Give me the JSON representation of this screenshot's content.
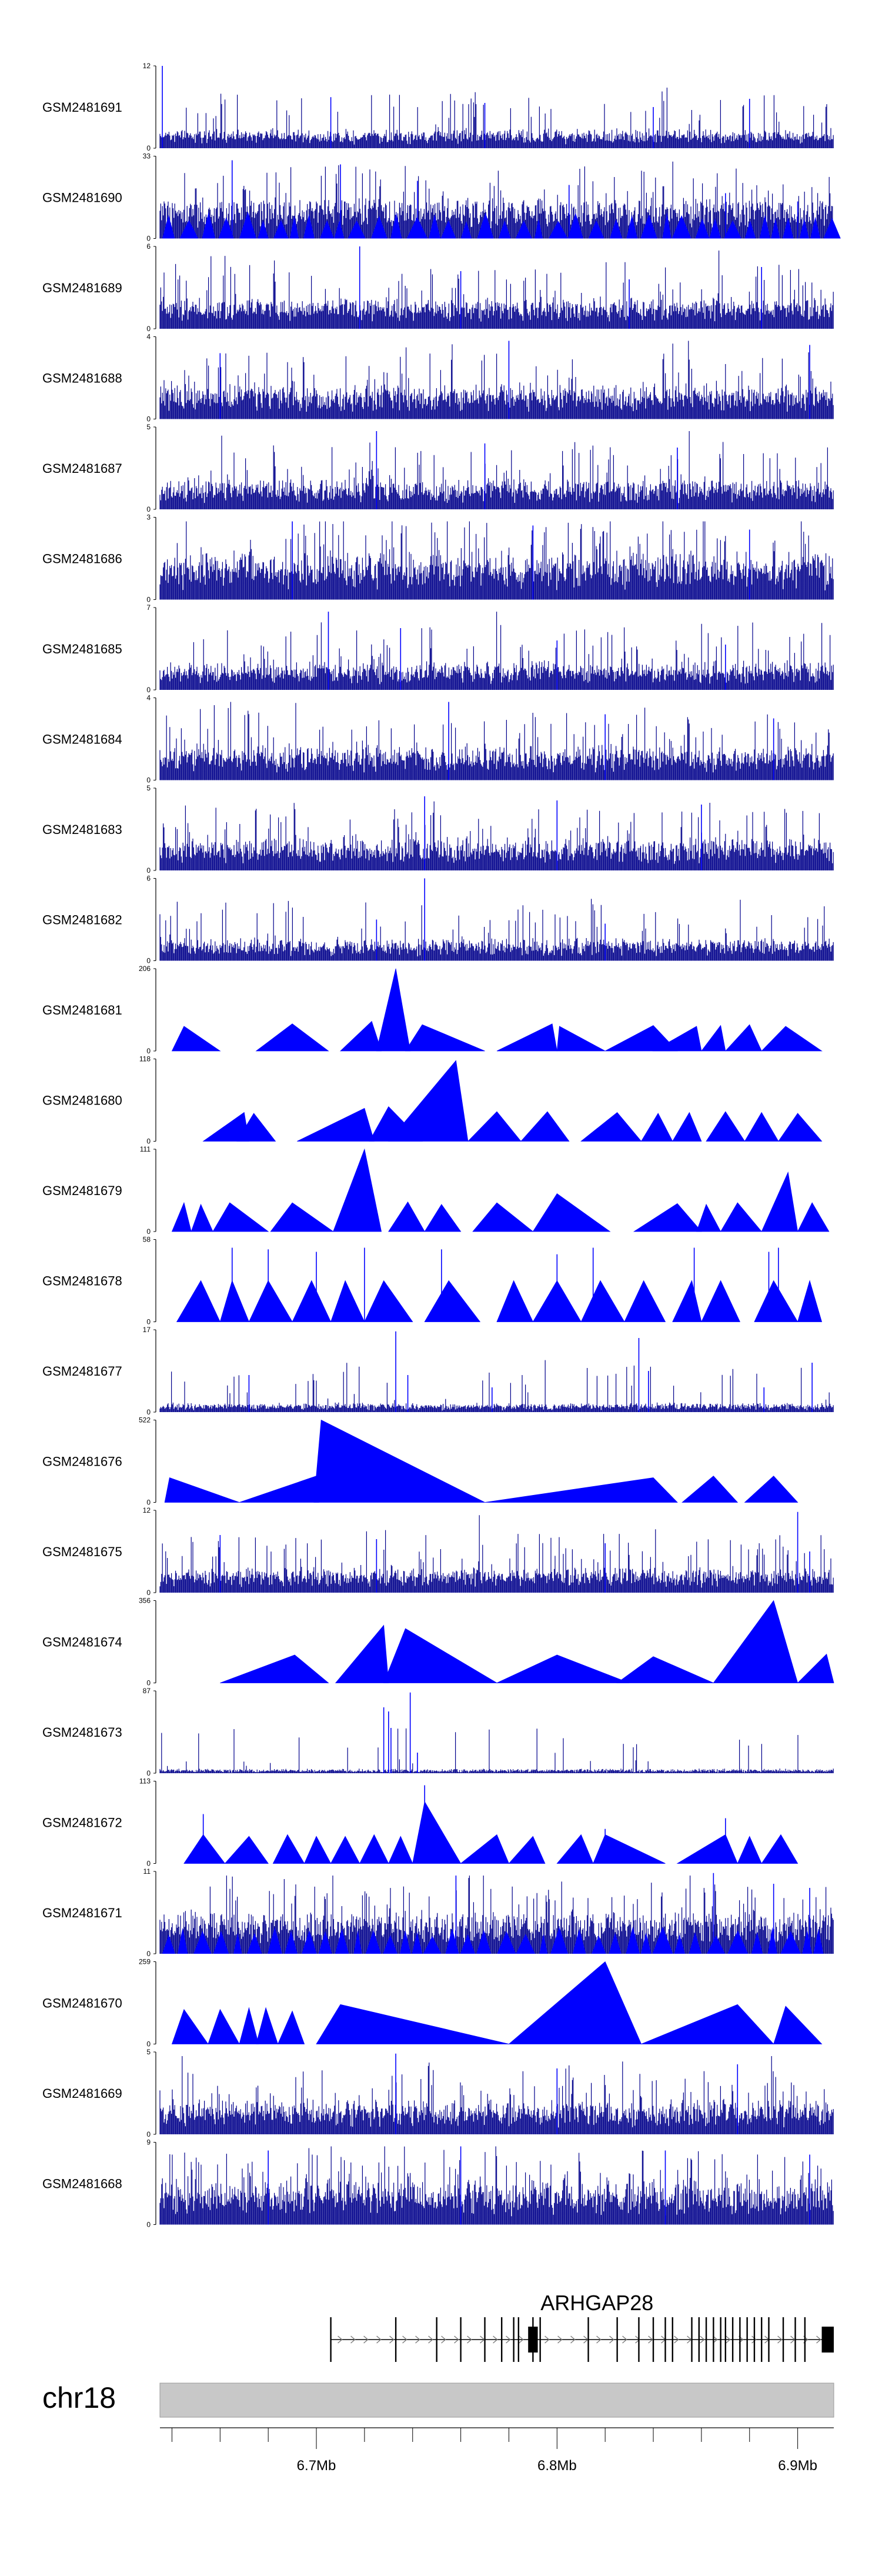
{
  "chart_data": {
    "type": "area",
    "title": "",
    "chromosome": "chr18",
    "x_range_mb": [
      6.635,
      6.915
    ],
    "x_ticks": [
      {
        "label": "6.7Mb",
        "value": 6.7
      },
      {
        "label": "6.8Mb",
        "value": 6.8
      },
      {
        "label": "6.9Mb",
        "value": 6.9
      }
    ],
    "tracks": [
      {
        "name": "GSM2481691",
        "ymax": 12,
        "ymin": 0,
        "style": "spiky",
        "base": 0.12,
        "noise": 0.08,
        "spike_rate": 0.08,
        "spikes": [
          [
            6.636,
            1.0
          ],
          [
            6.706,
            0.62
          ],
          [
            6.77,
            0.55
          ],
          [
            6.84,
            0.5
          ],
          [
            6.88,
            0.6
          ]
        ],
        "seed": 11
      },
      {
        "name": "GSM2481690",
        "ymax": 33,
        "ymin": 0,
        "style": "spiky_tri",
        "base": 0.3,
        "noise": 0.1,
        "spike_rate": 0.1,
        "spikes": [
          [
            6.665,
            0.95
          ],
          [
            6.71,
            0.9
          ],
          [
            6.742,
            0.7
          ],
          [
            6.805,
            0.65
          ],
          [
            6.87,
            0.55
          ],
          [
            6.9,
            0.45
          ]
        ],
        "seed": 12
      },
      {
        "name": "GSM2481689",
        "ymax": 6,
        "ymin": 0,
        "style": "spiky",
        "base": 0.2,
        "noise": 0.12,
        "spike_rate": 0.1,
        "spikes": [
          [
            6.718,
            1.0
          ],
          [
            6.76,
            0.7
          ],
          [
            6.83,
            0.6
          ],
          [
            6.885,
            0.75
          ]
        ],
        "seed": 13
      },
      {
        "name": "GSM2481688",
        "ymax": 4,
        "ymin": 0,
        "style": "spiky",
        "base": 0.22,
        "noise": 0.14,
        "spike_rate": 0.12,
        "spikes": [
          [
            6.66,
            0.8
          ],
          [
            6.78,
            0.95
          ],
          [
            6.905,
            0.9
          ]
        ],
        "seed": 14
      },
      {
        "name": "GSM2481687",
        "ymax": 5,
        "ymin": 0,
        "style": "spiky",
        "base": 0.2,
        "noise": 0.12,
        "spike_rate": 0.11,
        "spikes": [
          [
            6.725,
            0.95
          ],
          [
            6.77,
            0.8
          ],
          [
            6.85,
            0.75
          ]
        ],
        "seed": 15
      },
      {
        "name": "GSM2481686",
        "ymax": 3,
        "ymin": 0,
        "style": "spiky",
        "base": 0.3,
        "noise": 0.2,
        "spike_rate": 0.16,
        "spikes": [
          [
            6.69,
            0.95
          ],
          [
            6.79,
            0.9
          ],
          [
            6.88,
            0.85
          ]
        ],
        "seed": 16
      },
      {
        "name": "GSM2481685",
        "ymax": 7,
        "ymin": 0,
        "style": "spiky",
        "base": 0.18,
        "noise": 0.12,
        "spike_rate": 0.1,
        "spikes": [
          [
            6.705,
            0.95
          ],
          [
            6.735,
            0.75
          ],
          [
            6.8,
            0.6
          ],
          [
            6.87,
            0.55
          ]
        ],
        "seed": 17
      },
      {
        "name": "GSM2481684",
        "ymax": 4,
        "ymin": 0,
        "style": "spiky",
        "base": 0.22,
        "noise": 0.14,
        "spike_rate": 0.11,
        "spikes": [
          [
            6.755,
            0.95
          ],
          [
            6.82,
            0.8
          ],
          [
            6.89,
            0.75
          ]
        ],
        "seed": 18
      },
      {
        "name": "GSM2481683",
        "ymax": 5,
        "ymin": 0,
        "style": "spiky",
        "base": 0.2,
        "noise": 0.14,
        "spike_rate": 0.12,
        "spikes": [
          [
            6.745,
            0.9
          ],
          [
            6.8,
            0.85
          ],
          [
            6.86,
            0.8
          ]
        ],
        "seed": 19
      },
      {
        "name": "GSM2481682",
        "ymax": 6,
        "ymin": 0,
        "style": "spiky",
        "base": 0.14,
        "noise": 0.1,
        "spike_rate": 0.08,
        "spikes": [
          [
            6.745,
            1.0
          ],
          [
            6.725,
            0.5
          ],
          [
            6.82,
            0.45
          ]
        ],
        "seed": 20
      },
      {
        "name": "GSM2481681",
        "ymax": 206,
        "ymin": 0,
        "style": "triangles",
        "peaks": [
          [
            6.64,
            6.645,
            6.66,
            0.3
          ],
          [
            6.675,
            6.69,
            6.705,
            0.33
          ],
          [
            6.71,
            6.723,
            6.727,
            0.36
          ],
          [
            6.725,
            6.733,
            6.739,
            1.0
          ],
          [
            6.737,
            6.744,
            6.77,
            0.32
          ],
          [
            6.775,
            6.798,
            6.8,
            0.33
          ],
          [
            6.8,
            6.801,
            6.82,
            0.3
          ],
          [
            6.82,
            6.84,
            6.85,
            0.31
          ],
          [
            6.84,
            6.858,
            6.86,
            0.3
          ],
          [
            6.86,
            6.868,
            6.87,
            0.31
          ],
          [
            6.87,
            6.88,
            6.885,
            0.32
          ],
          [
            6.885,
            6.895,
            6.91,
            0.3
          ]
        ]
      },
      {
        "name": "GSM2481680",
        "ymax": 118,
        "ymin": 0,
        "style": "triangles",
        "peaks": [
          [
            6.653,
            6.67,
            6.672,
            0.35
          ],
          [
            6.667,
            6.674,
            6.683,
            0.34
          ],
          [
            6.692,
            6.72,
            6.724,
            0.4
          ],
          [
            6.722,
            6.73,
            6.744,
            0.42
          ],
          [
            6.73,
            6.758,
            6.763,
            0.98
          ],
          [
            6.763,
            6.775,
            6.785,
            0.36
          ],
          [
            6.785,
            6.796,
            6.805,
            0.36
          ],
          [
            6.81,
            6.825,
            6.835,
            0.35
          ],
          [
            6.835,
            6.842,
            6.848,
            0.34
          ],
          [
            6.848,
            6.855,
            6.86,
            0.35
          ],
          [
            6.862,
            6.87,
            6.878,
            0.36
          ],
          [
            6.878,
            6.885,
            6.892,
            0.35
          ],
          [
            6.892,
            6.9,
            6.91,
            0.34
          ]
        ]
      },
      {
        "name": "GSM2481679",
        "ymax": 111,
        "ymin": 0,
        "style": "triangles",
        "peaks": [
          [
            6.64,
            6.645,
            6.648,
            0.35
          ],
          [
            6.648,
            6.652,
            6.657,
            0.33
          ],
          [
            6.657,
            6.664,
            6.68,
            0.35
          ],
          [
            6.681,
            6.69,
            6.707,
            0.35
          ],
          [
            6.707,
            6.72,
            6.727,
            1.0
          ],
          [
            6.73,
            6.738,
            6.745,
            0.36
          ],
          [
            6.745,
            6.752,
            6.76,
            0.33
          ],
          [
            6.765,
            6.775,
            6.79,
            0.35
          ],
          [
            6.79,
            6.8,
            6.822,
            0.46
          ],
          [
            6.832,
            6.85,
            6.86,
            0.34
          ],
          [
            6.858,
            6.862,
            6.868,
            0.33
          ],
          [
            6.868,
            6.875,
            6.885,
            0.35
          ],
          [
            6.885,
            6.896,
            6.9,
            0.72
          ],
          [
            6.9,
            6.906,
            6.913,
            0.35
          ]
        ]
      },
      {
        "name": "GSM2481678",
        "ymax": 58,
        "ymin": 0,
        "style": "triangles_spiky",
        "peaks": [
          [
            6.642,
            6.652,
            6.66,
            0.5
          ],
          [
            6.66,
            6.665,
            6.672,
            0.5
          ],
          [
            6.672,
            6.68,
            6.69,
            0.5
          ],
          [
            6.69,
            6.698,
            6.706,
            0.5
          ],
          [
            6.706,
            6.712,
            6.72,
            0.5
          ],
          [
            6.72,
            6.728,
            6.74,
            0.5
          ],
          [
            6.745,
            6.755,
            6.768,
            0.5
          ],
          [
            6.775,
            6.782,
            6.79,
            0.5
          ],
          [
            6.79,
            6.8,
            6.81,
            0.5
          ],
          [
            6.81,
            6.818,
            6.828,
            0.5
          ],
          [
            6.828,
            6.836,
            6.845,
            0.5
          ],
          [
            6.848,
            6.856,
            6.86,
            0.5
          ],
          [
            6.86,
            6.868,
            6.876,
            0.5
          ],
          [
            6.882,
            6.89,
            6.9,
            0.5
          ],
          [
            6.9,
            6.905,
            6.91,
            0.5
          ]
        ],
        "spikes": [
          [
            6.665,
            0.9
          ],
          [
            6.68,
            0.88
          ],
          [
            6.7,
            0.85
          ],
          [
            6.72,
            0.9
          ],
          [
            6.752,
            0.88
          ],
          [
            6.8,
            0.82
          ],
          [
            6.815,
            0.9
          ],
          [
            6.857,
            0.9
          ],
          [
            6.888,
            0.85
          ],
          [
            6.892,
            0.9
          ]
        ]
      },
      {
        "name": "GSM2481677",
        "ymax": 17,
        "ymin": 0,
        "style": "spiky",
        "base": 0.05,
        "noise": 0.05,
        "spike_rate": 0.05,
        "spikes": [
          [
            6.672,
            0.45
          ],
          [
            6.733,
            0.98
          ],
          [
            6.738,
            0.45
          ],
          [
            6.773,
            0.3
          ],
          [
            6.834,
            0.9
          ],
          [
            6.838,
            0.5
          ],
          [
            6.886,
            0.3
          ],
          [
            6.906,
            0.6
          ]
        ],
        "seed": 21
      },
      {
        "name": "GSM2481676",
        "ymax": 522,
        "ymin": 0,
        "style": "triangles",
        "peaks": [
          [
            6.637,
            6.639,
            6.668,
            0.3
          ],
          [
            6.668,
            6.7,
            6.701,
            0.32
          ],
          [
            6.699,
            6.702,
            6.77,
            1.0
          ],
          [
            6.77,
            6.84,
            6.85,
            0.3
          ],
          [
            6.852,
            6.865,
            6.875,
            0.32
          ],
          [
            6.878,
            6.89,
            6.9,
            0.32
          ]
        ]
      },
      {
        "name": "GSM2481675",
        "ymax": 12,
        "ymin": 0,
        "style": "spiky",
        "base": 0.16,
        "noise": 0.1,
        "spike_rate": 0.1,
        "spikes": [
          [
            6.66,
            0.7
          ],
          [
            6.725,
            0.65
          ],
          [
            6.82,
            0.6
          ],
          [
            6.9,
            0.98
          ],
          [
            6.905,
            0.5
          ]
        ],
        "seed": 22
      },
      {
        "name": "GSM2481674",
        "ymax": 356,
        "ymin": 0,
        "style": "triangles",
        "peaks": [
          [
            6.66,
            6.691,
            6.705,
            0.34
          ],
          [
            6.708,
            6.728,
            6.73,
            0.7
          ],
          [
            6.728,
            6.737,
            6.775,
            0.66
          ],
          [
            6.775,
            6.8,
            6.83,
            0.34
          ],
          [
            6.825,
            6.84,
            6.865,
            0.32
          ],
          [
            6.865,
            6.89,
            6.9,
            1.0
          ],
          [
            6.9,
            6.912,
            6.915,
            0.35
          ]
        ]
      },
      {
        "name": "GSM2481673",
        "ymax": 87,
        "ymin": 0,
        "style": "spiky",
        "base": 0.02,
        "noise": 0.03,
        "spike_rate": 0.03,
        "spikes": [
          [
            6.728,
            0.8
          ],
          [
            6.73,
            0.75
          ],
          [
            6.731,
            0.55
          ],
          [
            6.739,
            0.98
          ],
          [
            6.742,
            0.25
          ]
        ],
        "seed": 23
      },
      {
        "name": "GSM2481672",
        "ymax": 113,
        "ymin": 0,
        "style": "triangles_spiky",
        "peaks": [
          [
            6.645,
            6.653,
            6.662,
            0.35
          ],
          [
            6.662,
            6.672,
            6.68,
            0.33
          ],
          [
            6.682,
            6.688,
            6.695,
            0.35
          ],
          [
            6.695,
            6.7,
            6.706,
            0.33
          ],
          [
            6.706,
            6.712,
            6.718,
            0.33
          ],
          [
            6.718,
            6.724,
            6.73,
            0.35
          ],
          [
            6.73,
            6.735,
            6.74,
            0.33
          ],
          [
            6.74,
            6.745,
            6.76,
            0.75
          ],
          [
            6.76,
            6.775,
            6.78,
            0.35
          ],
          [
            6.78,
            6.79,
            6.795,
            0.33
          ],
          [
            6.8,
            6.81,
            6.815,
            0.35
          ],
          [
            6.815,
            6.82,
            6.845,
            0.35
          ],
          [
            6.85,
            6.87,
            6.875,
            0.35
          ],
          [
            6.875,
            6.88,
            6.885,
            0.33
          ],
          [
            6.885,
            6.893,
            6.9,
            0.35
          ]
        ],
        "spikes": [
          [
            6.653,
            0.6
          ],
          [
            6.745,
            0.95
          ],
          [
            6.82,
            0.42
          ],
          [
            6.87,
            0.55
          ]
        ]
      },
      {
        "name": "GSM2481671",
        "ymax": 11,
        "ymin": 0,
        "style": "spiky_tri",
        "base": 0.3,
        "noise": 0.12,
        "spike_rate": 0.12,
        "spikes": [
          [
            6.758,
            0.95
          ],
          [
            6.865,
            0.98
          ],
          [
            6.89,
            0.85
          ],
          [
            6.905,
            0.8
          ]
        ],
        "seed": 24
      },
      {
        "name": "GSM2481670",
        "ymax": 259,
        "ymin": 0,
        "style": "triangles",
        "peaks": [
          [
            6.64,
            6.645,
            6.655,
            0.42
          ],
          [
            6.655,
            6.66,
            6.668,
            0.42
          ],
          [
            6.668,
            6.672,
            6.676,
            0.44
          ],
          [
            6.675,
            6.679,
            6.684,
            0.44
          ],
          [
            6.684,
            6.69,
            6.695,
            0.4
          ],
          [
            6.7,
            6.71,
            6.78,
            0.48
          ],
          [
            6.78,
            6.82,
            6.835,
            1.0
          ],
          [
            6.835,
            6.875,
            6.89,
            0.48
          ],
          [
            6.89,
            6.895,
            6.91,
            0.46
          ]
        ]
      },
      {
        "name": "GSM2481669",
        "ymax": 5,
        "ymin": 0,
        "style": "spiky",
        "base": 0.22,
        "noise": 0.14,
        "spike_rate": 0.12,
        "spikes": [
          [
            6.733,
            0.98
          ],
          [
            6.8,
            0.8
          ],
          [
            6.875,
            0.85
          ]
        ],
        "seed": 25
      },
      {
        "name": "GSM2481668",
        "ymax": 9,
        "ymin": 0,
        "style": "spiky",
        "base": 0.28,
        "noise": 0.18,
        "spike_rate": 0.16,
        "spikes": [
          [
            6.68,
            0.9
          ],
          [
            6.76,
            0.95
          ],
          [
            6.845,
            0.9
          ],
          [
            6.905,
            0.85
          ]
        ],
        "seed": 26
      }
    ],
    "gene": {
      "name": "ARHGAP28",
      "start": 6.706,
      "end": 6.915,
      "strand": "+",
      "exons": [
        6.706,
        6.733,
        6.75,
        6.76,
        6.77,
        6.777,
        6.782,
        6.784,
        6.79,
        6.793,
        6.813,
        6.825,
        6.834,
        6.84,
        6.845,
        6.848,
        6.856,
        6.859,
        6.862,
        6.865,
        6.868,
        6.87,
        6.873,
        6.876,
        6.879,
        6.882,
        6.885,
        6.888,
        6.894,
        6.899,
        6.903
      ],
      "thick_exons": [
        [
          6.788,
          6.792
        ],
        [
          6.91,
          6.915
        ]
      ]
    },
    "colors": {
      "signal": "#0000ff",
      "signal_dark": "#00008b",
      "axis": "#000000",
      "ideogram_fill": "#c8c8c8",
      "ideogram_stroke": "#999999",
      "gene": "#000000",
      "strand_arrow": "#777777"
    }
  }
}
